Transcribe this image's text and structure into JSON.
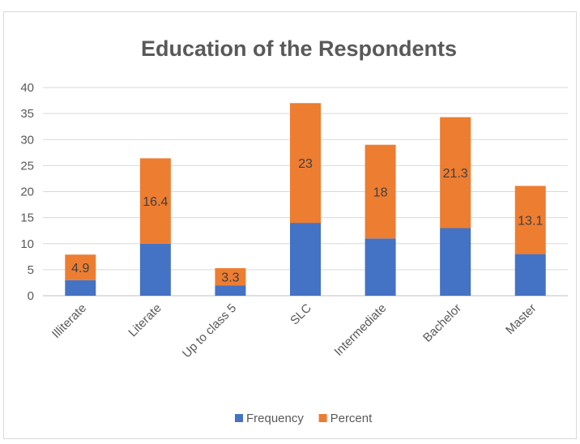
{
  "chart_data": {
    "type": "bar",
    "stacked": true,
    "title": "Education of the Respondents",
    "categories": [
      "Illiterate",
      "Literate",
      "Up to class 5",
      "SLC",
      "Intermediate",
      "Bachelor",
      "Master"
    ],
    "series": [
      {
        "name": "Frequency",
        "values": [
          3,
          10,
          2,
          14,
          11,
          13,
          8
        ],
        "color": "#4472c4"
      },
      {
        "name": "Percent",
        "values": [
          4.9,
          16.4,
          3.3,
          23,
          18,
          21.3,
          13.1
        ],
        "color": "#ed7d31",
        "data_labels": [
          "4.9",
          "16.4",
          "3.3",
          "23",
          "18",
          "21.3",
          "13.1"
        ]
      }
    ],
    "ylim": [
      0,
      40
    ],
    "yticks": [
      0,
      5,
      10,
      15,
      20,
      25,
      30,
      35,
      40
    ],
    "grid": true,
    "legend_position": "bottom"
  }
}
